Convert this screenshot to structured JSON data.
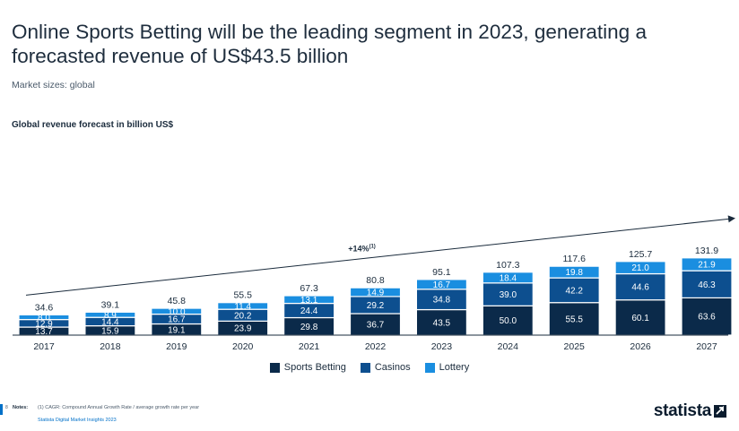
{
  "header": {
    "title": "Online Sports Betting will be the leading segment in 2023, generating a forecasted revenue of US$43.5 billion",
    "subtitle": "Market sizes: global"
  },
  "chart_data": {
    "type": "bar",
    "stacked": true,
    "title": "Global revenue forecast in billion US$",
    "xlabel": "",
    "ylabel": "",
    "ylim": [
      0,
      140
    ],
    "grid": false,
    "legend_position": "bottom",
    "categories": [
      "2017",
      "2018",
      "2019",
      "2020",
      "2021",
      "2022",
      "2023",
      "2024",
      "2025",
      "2026",
      "2027"
    ],
    "series": [
      {
        "name": "Sports Betting",
        "color": "#0b2a4a",
        "values": [
          13.7,
          15.9,
          19.1,
          23.9,
          29.8,
          36.7,
          43.5,
          50.0,
          55.5,
          60.1,
          63.6
        ]
      },
      {
        "name": "Casinos",
        "color": "#0d4f8f",
        "values": [
          12.9,
          14.4,
          16.7,
          20.2,
          24.4,
          29.2,
          34.8,
          39.0,
          42.2,
          44.6,
          46.3
        ]
      },
      {
        "name": "Lottery",
        "color": "#1a8ee0",
        "values": [
          8.0,
          8.9,
          10.0,
          11.4,
          13.1,
          14.9,
          16.7,
          18.4,
          19.8,
          21.0,
          21.9
        ]
      }
    ],
    "totals": [
      34.6,
      39.1,
      45.8,
      55.5,
      67.3,
      80.8,
      95.1,
      107.3,
      117.6,
      125.7,
      131.9
    ],
    "value_labels": {
      "Sports Betting": [
        "13.7",
        "15.9",
        "19.1",
        "23.9",
        "29.8",
        "36.7",
        "43.5",
        "50.0",
        "55.5",
        "60.1",
        "63.6"
      ],
      "Casinos": [
        "12.9",
        "14.4",
        "16.7",
        "20.2",
        "24.4",
        "29.2",
        "34.8",
        "39.0",
        "42.2",
        "44.6",
        "46.3"
      ],
      "Lottery": [
        "8.0",
        "8.9",
        "10.0",
        "11.4",
        "13.1",
        "14.9",
        "16.7",
        "18.4",
        "19.8",
        "21.0",
        "21.9"
      ]
    },
    "total_labels": [
      "34.6",
      "39.1",
      "45.8",
      "55.5",
      "67.3",
      "80.8",
      "95.1",
      "107.3",
      "117.6",
      "125.7",
      "131.9"
    ],
    "annotation": {
      "text": "+14%",
      "superscript": "(1)"
    }
  },
  "footer": {
    "page": "8",
    "notes_label": "Notes:",
    "note": "(1) CAGR: Compound Annual Growth Rate / average growth rate per year",
    "source": "Statista Digital Market Insights 2023"
  },
  "brand": {
    "name": "statista"
  }
}
